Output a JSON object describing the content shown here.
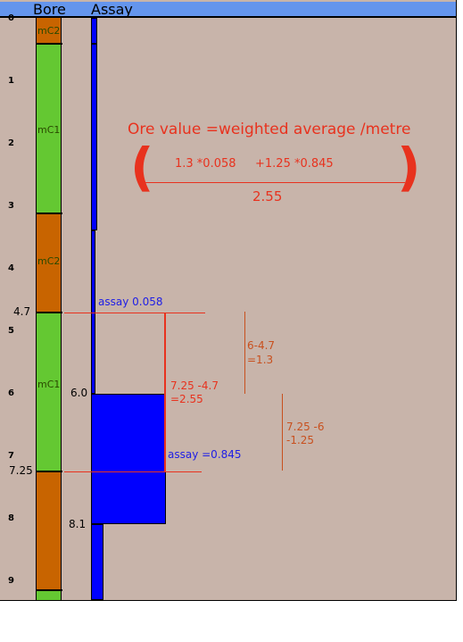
{
  "header": {
    "col_bore": "Bore",
    "col_assay": "Assay"
  },
  "depth_ticks": [
    "0",
    "1",
    "2",
    "3",
    "4",
    "5",
    "6",
    "7",
    "8",
    "9"
  ],
  "bore_segments": [
    {
      "label": "mC2",
      "color": "#c86400"
    },
    {
      "label": "mC1",
      "color": "#64c832"
    },
    {
      "label": "mC2",
      "color": "#c86400"
    },
    {
      "label": "mC1",
      "color": "#64c832"
    },
    {
      "label": "",
      "color": "#c86400"
    },
    {
      "label": "",
      "color": "#64c832"
    }
  ],
  "depth_markers": {
    "d1": "4.7",
    "d2": "6.0",
    "d3": "7.25",
    "d4": "8.1"
  },
  "assay_labels": {
    "low": "assay 0.058",
    "high": "assay =0.845"
  },
  "formula": {
    "title": "Ore value =weighted average /metre",
    "paren_open": "(",
    "paren_close": ")",
    "term1": "1.3 *0.058",
    "term2": "+1.25 *0.845",
    "denominator": "2.55"
  },
  "intervals": {
    "a_line1": "6-4.7",
    "a_line2": "=1.3",
    "b_line1": "7.25 -4.7",
    "b_line2": "=2.55",
    "c_line1": "7.25 -6",
    "c_line2": "-1.25"
  },
  "colors": {
    "accent_red": "#e8321e",
    "interval_orange": "#c8501e",
    "assay_blue": "#0000ff",
    "header_blue": "#6495ed",
    "background": "#c8b4aa"
  }
}
